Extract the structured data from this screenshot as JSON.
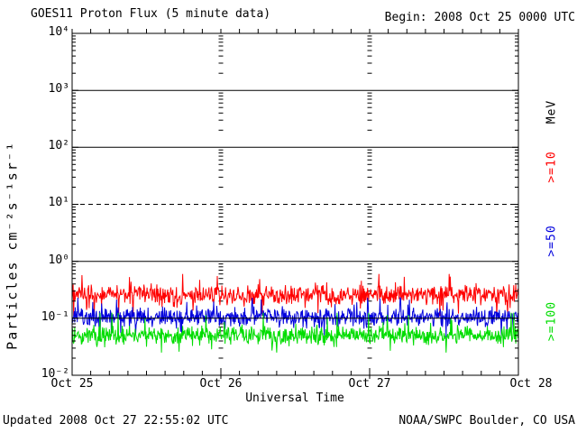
{
  "header": {
    "title": "GOES11 Proton Flux (5 minute data)",
    "begin_label": "Begin: 2008 Oct 25 0000 UTC"
  },
  "footer": {
    "updated": "Updated 2008 Oct 27 22:55:02 UTC",
    "source": "NOAA/SWPC Boulder, CO USA"
  },
  "chart_data": {
    "type": "line",
    "title": "GOES11 Proton Flux (5 minute data)",
    "xlabel": "Universal Time",
    "ylabel": "Particles cm⁻²s⁻¹sr⁻¹",
    "unit_label": "MeV",
    "y_scale": "log",
    "ylim": [
      0.01,
      10000
    ],
    "y_tick_labels": [
      "10⁴",
      "10³",
      "10²",
      "10¹",
      "10⁰",
      "10⁻¹",
      "10⁻²"
    ],
    "x_tick_labels": [
      "Oct 25",
      "Oct 26",
      "Oct 27",
      "Oct 28"
    ],
    "begin_time": "2008 Oct 25 0000 UTC",
    "x_days": 3,
    "cadence_minutes": 5,
    "x_minor_tick_hours": 3,
    "grid_solid_lines": [
      1000,
      100,
      1,
      0.1
    ],
    "grid_dashed_lines": [
      10
    ],
    "series": [
      {
        "name": ">=10",
        "unit": "MeV",
        "color": "#ff0000",
        "typical": 0.26,
        "min": 0.11,
        "max": 0.6
      },
      {
        "name": ">=50",
        "unit": "MeV",
        "color": "#0000dd",
        "typical": 0.105,
        "min": 0.045,
        "max": 0.23
      },
      {
        "name": ">=100",
        "unit": "MeV",
        "color": "#00dd00",
        "typical": 0.05,
        "min": 0.025,
        "max": 0.125
      }
    ]
  }
}
